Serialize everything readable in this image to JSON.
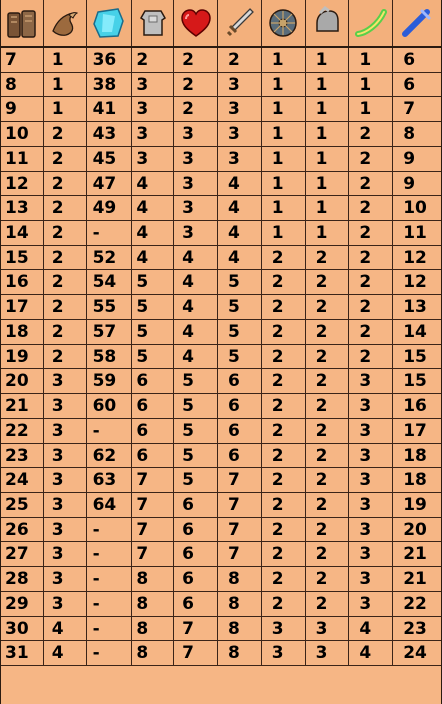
{
  "header": {
    "icons": [
      "armor-plates-icon",
      "bird-icon",
      "crystal-icon",
      "chest-armor-icon",
      "heart-icon",
      "sword-icon",
      "shield-wheel-icon",
      "helmet-icon",
      "horn-icon",
      "blue-tool-icon"
    ]
  },
  "rows": [
    {
      "c": [
        "7",
        "1",
        "36",
        "2",
        "2",
        "2",
        "1",
        "1",
        "1",
        "6"
      ]
    },
    {
      "c": [
        "8",
        "1",
        "38",
        "3",
        "2",
        "3",
        "1",
        "1",
        "1",
        "6"
      ]
    },
    {
      "c": [
        "9",
        "1",
        "41",
        "3",
        "2",
        "3",
        "1",
        "1",
        "1",
        "7"
      ]
    },
    {
      "c": [
        "10",
        "2",
        "43",
        "3",
        "3",
        "3",
        "1",
        "1",
        "2",
        "8"
      ]
    },
    {
      "c": [
        "11",
        "2",
        "45",
        "3",
        "3",
        "3",
        "1",
        "1",
        "2",
        "9"
      ]
    },
    {
      "c": [
        "12",
        "2",
        "47",
        "4",
        "3",
        "4",
        "1",
        "1",
        "2",
        "9"
      ]
    },
    {
      "c": [
        "13",
        "2",
        "49",
        "4",
        "3",
        "4",
        "1",
        "1",
        "2",
        "10"
      ]
    },
    {
      "c": [
        "14",
        "2",
        "-",
        "4",
        "3",
        "4",
        "1",
        "1",
        "2",
        "11"
      ]
    },
    {
      "c": [
        "15",
        "2",
        "52",
        "4",
        "4",
        "4",
        "2",
        "2",
        "2",
        "12"
      ]
    },
    {
      "c": [
        "16",
        "2",
        "54",
        "5",
        "4",
        "5",
        "2",
        "2",
        "2",
        "12"
      ]
    },
    {
      "c": [
        "17",
        "2",
        "55",
        "5",
        "4",
        "5",
        "2",
        "2",
        "2",
        "13"
      ]
    },
    {
      "c": [
        "18",
        "2",
        "57",
        "5",
        "4",
        "5",
        "2",
        "2",
        "2",
        "14"
      ]
    },
    {
      "c": [
        "19",
        "2",
        "58",
        "5",
        "4",
        "5",
        "2",
        "2",
        "2",
        "15"
      ]
    },
    {
      "c": [
        "20",
        "3",
        "59",
        "6",
        "5",
        "6",
        "2",
        "2",
        "3",
        "15"
      ]
    },
    {
      "c": [
        "21",
        "3",
        "60",
        "6",
        "5",
        "6",
        "2",
        "2",
        "3",
        "16"
      ]
    },
    {
      "c": [
        "22",
        "3",
        "-",
        "6",
        "5",
        "6",
        "2",
        "2",
        "3",
        "17"
      ]
    },
    {
      "c": [
        "23",
        "3",
        "62",
        "6",
        "5",
        "6",
        "2",
        "2",
        "3",
        "18"
      ]
    },
    {
      "c": [
        "24",
        "3",
        "63",
        "7",
        "5",
        "7",
        "2",
        "2",
        "3",
        "18"
      ]
    },
    {
      "c": [
        "25",
        "3",
        "64",
        "7",
        "6",
        "7",
        "2",
        "2",
        "3",
        "19"
      ]
    },
    {
      "c": [
        "26",
        "3",
        "-",
        "7",
        "6",
        "7",
        "2",
        "2",
        "3",
        "20"
      ]
    },
    {
      "c": [
        "27",
        "3",
        "-",
        "7",
        "6",
        "7",
        "2",
        "2",
        "3",
        "21"
      ]
    },
    {
      "c": [
        "28",
        "3",
        "-",
        "8",
        "6",
        "8",
        "2",
        "2",
        "3",
        "21"
      ]
    },
    {
      "c": [
        "29",
        "3",
        "-",
        "8",
        "6",
        "8",
        "2",
        "2",
        "3",
        "22"
      ]
    },
    {
      "c": [
        "30",
        "4",
        "-",
        "8",
        "7",
        "8",
        "3",
        "3",
        "4",
        "23"
      ]
    },
    {
      "c": [
        "31",
        "4",
        "-",
        "8",
        "7",
        "8",
        "3",
        "3",
        "4",
        "24"
      ]
    }
  ]
}
